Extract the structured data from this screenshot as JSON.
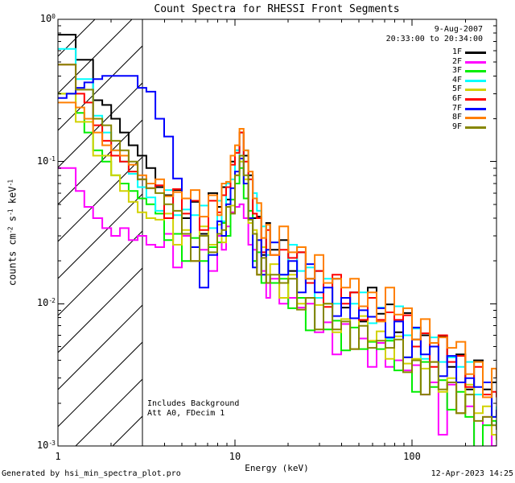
{
  "header": {
    "title": "Count Spectra for RHESSI Front Segments"
  },
  "annotations": {
    "date": "9-Aug-2007",
    "time_range": "20:33:00 to 20:34:00",
    "note_line1": "Includes Background",
    "note_line2": "Att A0, FDecim 1"
  },
  "footer": {
    "generated_by": "Generated by hsi_min_spectra_plot.pro",
    "timestamp": "12-Apr-2023 14:25"
  },
  "chart_data": {
    "type": "line",
    "title": "Count Spectra for RHESSI Front Segments",
    "xlabel": "Energy (keV)",
    "ylabel": "counts cm⁻² s⁻¹ keV⁻¹",
    "ylabel_tokens": [
      "counts cm",
      "-2",
      " s",
      "-1",
      " keV",
      "-1"
    ],
    "xscale": "log",
    "yscale": "log",
    "xlim": [
      1,
      300
    ],
    "ylim": [
      0.001,
      1
    ],
    "x_ticks": [
      1,
      10,
      100
    ],
    "y_tick_exponents": [
      0,
      -1,
      -2,
      -3
    ],
    "grid": false,
    "legend_position": "top-right-inside",
    "hatch_region": {
      "x_start": 1,
      "x_end": 3
    },
    "x_bins": [
      1.0,
      1.12,
      1.26,
      1.41,
      1.58,
      1.78,
      2.0,
      2.24,
      2.51,
      2.82,
      3.16,
      3.55,
      3.98,
      4.47,
      5.01,
      5.62,
      6.31,
      7.08,
      7.94,
      8.41,
      8.91,
      9.44,
      10.0,
      10.6,
      11.2,
      11.9,
      12.6,
      13.3,
      14.1,
      15.0,
      15.8,
      17.8,
      20.0,
      22.4,
      25.1,
      28.2,
      31.6,
      35.5,
      39.8,
      44.7,
      50.1,
      56.2,
      63.1,
      70.8,
      79.4,
      89.1,
      100,
      112,
      126,
      141,
      158,
      178,
      200,
      224,
      251,
      282,
      300
    ],
    "series": [
      {
        "name": "1F",
        "color": "#000000",
        "values": [
          0.78,
          0.78,
          0.52,
          0.52,
          0.27,
          0.25,
          0.2,
          0.16,
          0.13,
          0.11,
          0.09,
          0.066,
          0.058,
          0.063,
          0.04,
          0.052,
          0.031,
          0.06,
          0.048,
          0.066,
          0.054,
          0.1,
          0.12,
          0.16,
          0.11,
          0.08,
          0.04,
          0.041,
          0.022,
          0.037,
          0.024,
          0.028,
          0.017,
          0.023,
          0.015,
          0.017,
          0.014,
          0.015,
          0.0094,
          0.012,
          0.0075,
          0.013,
          0.0085,
          0.0099,
          0.0063,
          0.0086,
          0.0056,
          0.006,
          0.0053,
          0.0059,
          0.0036,
          0.0044,
          0.0025,
          0.004,
          0.0025,
          0.0028,
          0.0028
        ]
      },
      {
        "name": "2F",
        "color": "#ff00ff",
        "values": [
          0.09,
          0.09,
          0.062,
          0.048,
          0.04,
          0.034,
          0.03,
          0.034,
          0.028,
          0.03,
          0.026,
          0.025,
          0.031,
          0.018,
          0.03,
          0.02,
          0.024,
          0.017,
          0.03,
          0.024,
          0.035,
          0.044,
          0.048,
          0.05,
          0.04,
          0.026,
          0.024,
          0.016,
          0.017,
          0.011,
          0.015,
          0.01,
          0.011,
          0.0094,
          0.01,
          0.0063,
          0.0074,
          0.0044,
          0.0072,
          0.0048,
          0.0057,
          0.0036,
          0.0053,
          0.0036,
          0.004,
          0.0034,
          0.0037,
          0.0023,
          0.0028,
          0.0012,
          0.0027,
          0.0017,
          0.0019,
          0.0008,
          0.0016,
          0.001,
          0.0009
        ]
      },
      {
        "name": "3F",
        "color": "#00ee00",
        "values": [
          0.3,
          0.3,
          0.22,
          0.16,
          0.12,
          0.1,
          0.08,
          0.07,
          0.062,
          0.055,
          0.05,
          0.043,
          0.028,
          0.031,
          0.02,
          0.029,
          0.02,
          0.025,
          0.027,
          0.037,
          0.03,
          0.054,
          0.07,
          0.09,
          0.055,
          0.045,
          0.02,
          0.023,
          0.014,
          0.016,
          0.014,
          0.015,
          0.0093,
          0.011,
          0.0065,
          0.011,
          0.0066,
          0.0076,
          0.0047,
          0.0068,
          0.0048,
          0.0054,
          0.0048,
          0.0055,
          0.0034,
          0.0042,
          0.0024,
          0.0039,
          0.0026,
          0.0029,
          0.0018,
          0.0024,
          0.0016,
          0.0009,
          0.0014,
          0.0015,
          0.0013
        ]
      },
      {
        "name": "4F",
        "color": "#00ffff",
        "values": [
          0.62,
          0.62,
          0.38,
          0.38,
          0.21,
          0.16,
          0.12,
          0.1,
          0.082,
          0.066,
          0.056,
          0.045,
          0.063,
          0.042,
          0.046,
          0.042,
          0.049,
          0.034,
          0.053,
          0.038,
          0.07,
          0.075,
          0.12,
          0.1,
          0.12,
          0.075,
          0.06,
          0.045,
          0.035,
          0.022,
          0.027,
          0.016,
          0.026,
          0.017,
          0.018,
          0.011,
          0.015,
          0.01,
          0.011,
          0.01,
          0.012,
          0.0073,
          0.0094,
          0.0057,
          0.0096,
          0.006,
          0.0067,
          0.0041,
          0.0058,
          0.0039,
          0.0042,
          0.0036,
          0.0039,
          0.0023,
          0.0028,
          0.0016,
          0.0019
        ]
      },
      {
        "name": "5F",
        "color": "#d2d200",
        "values": [
          0.3,
          0.3,
          0.19,
          0.19,
          0.11,
          0.11,
          0.08,
          0.062,
          0.052,
          0.044,
          0.04,
          0.039,
          0.043,
          0.026,
          0.033,
          0.02,
          0.035,
          0.026,
          0.036,
          0.027,
          0.05,
          0.049,
          0.08,
          0.1,
          0.075,
          0.037,
          0.033,
          0.016,
          0.025,
          0.016,
          0.019,
          0.011,
          0.016,
          0.01,
          0.011,
          0.0098,
          0.01,
          0.0063,
          0.0078,
          0.0048,
          0.0082,
          0.0055,
          0.0064,
          0.0041,
          0.0059,
          0.0038,
          0.0041,
          0.0035,
          0.0039,
          0.0024,
          0.003,
          0.0017,
          0.0027,
          0.0017,
          0.0019,
          0.0012,
          0.0011
        ]
      },
      {
        "name": "6F",
        "color": "#ff0000",
        "values": [
          0.48,
          0.48,
          0.3,
          0.26,
          0.18,
          0.14,
          0.11,
          0.1,
          0.085,
          0.075,
          0.065,
          0.068,
          0.04,
          0.064,
          0.043,
          0.053,
          0.033,
          0.053,
          0.044,
          0.058,
          0.066,
          0.095,
          0.115,
          0.16,
          0.1,
          0.075,
          0.043,
          0.04,
          0.023,
          0.033,
          0.022,
          0.024,
          0.021,
          0.023,
          0.014,
          0.017,
          0.0095,
          0.016,
          0.01,
          0.012,
          0.0077,
          0.011,
          0.0077,
          0.0087,
          0.0077,
          0.0083,
          0.005,
          0.0062,
          0.0036,
          0.006,
          0.0039,
          0.0043,
          0.0026,
          0.0036,
          0.0023,
          0.0024,
          0.0022
        ]
      },
      {
        "name": "7F",
        "color": "#0000ff",
        "values": [
          0.28,
          0.3,
          0.33,
          0.36,
          0.38,
          0.4,
          0.4,
          0.4,
          0.4,
          0.33,
          0.31,
          0.2,
          0.15,
          0.076,
          0.055,
          0.025,
          0.013,
          0.022,
          0.038,
          0.03,
          0.05,
          0.065,
          0.085,
          0.105,
          0.07,
          0.04,
          0.018,
          0.028,
          0.016,
          0.024,
          0.027,
          0.016,
          0.02,
          0.012,
          0.019,
          0.012,
          0.013,
          0.0082,
          0.011,
          0.0079,
          0.009,
          0.0081,
          0.0093,
          0.0058,
          0.0075,
          0.0042,
          0.0068,
          0.0044,
          0.005,
          0.0031,
          0.0043,
          0.0028,
          0.003,
          0.0026,
          0.0028,
          0.0016,
          0.0018
        ]
      },
      {
        "name": "8F",
        "color": "#ff7f00",
        "values": [
          0.26,
          0.26,
          0.24,
          0.2,
          0.16,
          0.13,
          0.12,
          0.11,
          0.095,
          0.08,
          0.07,
          0.075,
          0.057,
          0.061,
          0.055,
          0.063,
          0.041,
          0.058,
          0.042,
          0.07,
          0.072,
          0.11,
          0.13,
          0.17,
          0.12,
          0.085,
          0.055,
          0.051,
          0.029,
          0.036,
          0.022,
          0.035,
          0.023,
          0.025,
          0.015,
          0.022,
          0.014,
          0.015,
          0.013,
          0.015,
          0.0096,
          0.012,
          0.0075,
          0.013,
          0.0084,
          0.0093,
          0.0056,
          0.0078,
          0.0053,
          0.0058,
          0.0049,
          0.0054,
          0.0032,
          0.0039,
          0.0022,
          0.0035,
          0.003
        ]
      },
      {
        "name": "9F",
        "color": "#868600",
        "values": [
          0.48,
          0.48,
          0.32,
          0.32,
          0.2,
          0.18,
          0.14,
          0.12,
          0.1,
          0.075,
          0.065,
          0.06,
          0.05,
          0.045,
          0.031,
          0.02,
          0.03,
          0.023,
          0.031,
          0.033,
          0.048,
          0.043,
          0.08,
          0.11,
          0.08,
          0.039,
          0.031,
          0.016,
          0.021,
          0.014,
          0.016,
          0.014,
          0.015,
          0.0091,
          0.011,
          0.0066,
          0.01,
          0.0066,
          0.0075,
          0.0048,
          0.007,
          0.0049,
          0.0055,
          0.0049,
          0.0056,
          0.0033,
          0.004,
          0.0023,
          0.0039,
          0.0025,
          0.0028,
          0.0017,
          0.0023,
          0.0015,
          0.0016,
          0.0014,
          0.0013
        ]
      }
    ]
  }
}
